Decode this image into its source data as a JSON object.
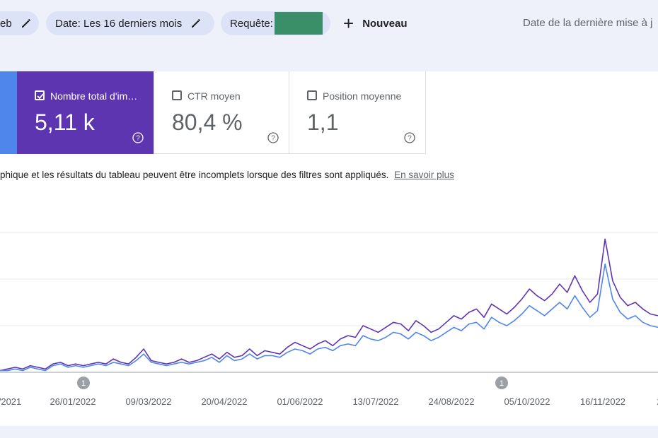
{
  "filters": {
    "chip_search_type": "eb",
    "chip_date": "Date: Les 16 derniers mois",
    "chip_query": "Requête:",
    "new_label": "Nouveau",
    "last_update": "Date de la dernière mise à j"
  },
  "metrics": {
    "impressions": {
      "label": "Nombre total d'im…",
      "value": "5,11 k",
      "checked": true
    },
    "ctr": {
      "label": "CTR moyen",
      "value": "80,4 %",
      "checked": false
    },
    "position": {
      "label": "Position moyenne",
      "value": "1,1",
      "checked": false
    }
  },
  "notice": {
    "text": "phique et les résultats du tableau peuvent être incomplets lorsque des filtres sont appliqués.",
    "link": "En savoir plus"
  },
  "colors": {
    "impressions": "#5e35b1",
    "clicks": "#4f86ec",
    "annotation": "#9aa0a6"
  },
  "chart_data": {
    "type": "line",
    "x_tick_labels": [
      "/2021",
      "26/01/2022",
      "09/03/2022",
      "20/04/2022",
      "01/06/2022",
      "13/07/2022",
      "24/08/2022",
      "05/10/2022",
      "16/11/2022",
      "2"
    ],
    "annotations": [
      {
        "label": "1",
        "near": "26/01/2022"
      },
      {
        "label": "1",
        "near": "05/10/2022"
      }
    ],
    "grid": true,
    "series": [
      {
        "color": "#5e35b1",
        "values": [
          1,
          2,
          3,
          2,
          4,
          3,
          2,
          5,
          6,
          4,
          5,
          4,
          5,
          6,
          5,
          8,
          6,
          5,
          9,
          14,
          7,
          6,
          5,
          6,
          8,
          6,
          7,
          9,
          11,
          8,
          12,
          9,
          10,
          14,
          10,
          13,
          12,
          11,
          15,
          18,
          16,
          14,
          17,
          19,
          16,
          20,
          22,
          21,
          28,
          26,
          24,
          27,
          30,
          29,
          25,
          31,
          28,
          24,
          26,
          30,
          34,
          32,
          36,
          38,
          33,
          41,
          38,
          35,
          39,
          44,
          50,
          46,
          43,
          47,
          53,
          48,
          58,
          49,
          42,
          47,
          80,
          55,
          45,
          40,
          42,
          38,
          35,
          34
        ]
      },
      {
        "color": "#4f86ec",
        "values": [
          1,
          1,
          2,
          1,
          3,
          2,
          1,
          4,
          5,
          3,
          4,
          3,
          4,
          5,
          4,
          6,
          5,
          4,
          7,
          11,
          6,
          5,
          4,
          5,
          6,
          5,
          6,
          7,
          9,
          6,
          10,
          7,
          8,
          11,
          8,
          10,
          10,
          9,
          12,
          14,
          13,
          11,
          14,
          15,
          13,
          16,
          17,
          16,
          22,
          20,
          19,
          21,
          24,
          23,
          20,
          24,
          22,
          19,
          21,
          24,
          27,
          25,
          29,
          30,
          26,
          33,
          30,
          28,
          31,
          35,
          40,
          37,
          34,
          38,
          42,
          38,
          46,
          39,
          33,
          37,
          65,
          44,
          36,
          32,
          34,
          30,
          28,
          27
        ]
      }
    ]
  }
}
